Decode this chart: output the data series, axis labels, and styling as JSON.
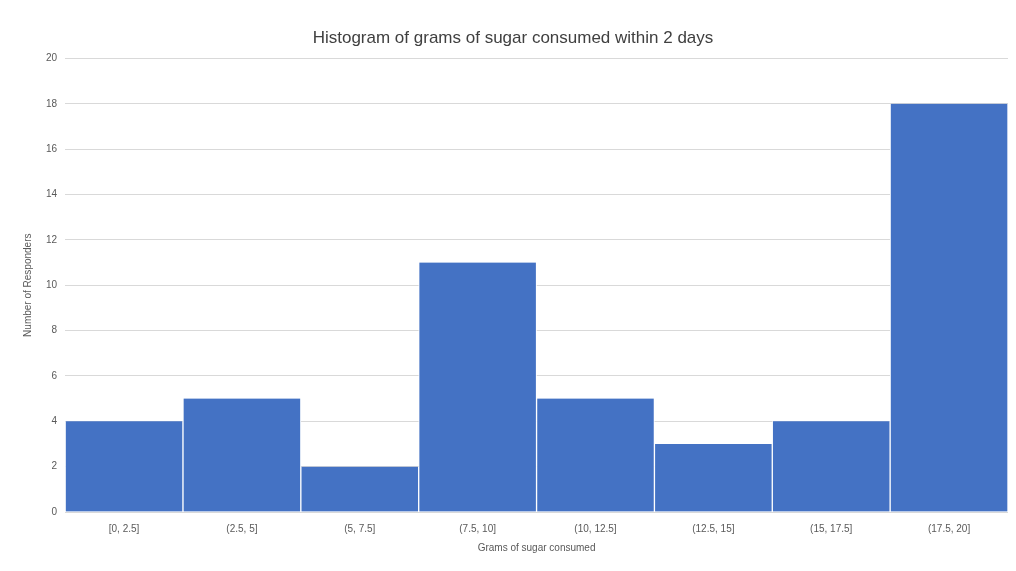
{
  "chart_data": {
    "type": "bar",
    "title": "Histogram of grams of sugar consumed within 2 days",
    "xlabel": "Grams of sugar consumed",
    "ylabel": "Number of Responders",
    "categories": [
      "[0, 2.5]",
      "(2.5, 5]",
      "(5, 7.5]",
      "(7.5, 10]",
      "(10, 12.5]",
      "(12.5, 15]",
      "(15, 17.5]",
      "(17.5, 20]"
    ],
    "values": [
      4,
      5,
      2,
      11,
      5,
      3,
      4,
      18
    ],
    "color": "#4472c4",
    "ylim": [
      0,
      20
    ],
    "yticks": [
      0,
      2,
      4,
      6,
      8,
      10,
      12,
      14,
      16,
      18,
      20
    ],
    "grid": "y",
    "legend": false
  }
}
